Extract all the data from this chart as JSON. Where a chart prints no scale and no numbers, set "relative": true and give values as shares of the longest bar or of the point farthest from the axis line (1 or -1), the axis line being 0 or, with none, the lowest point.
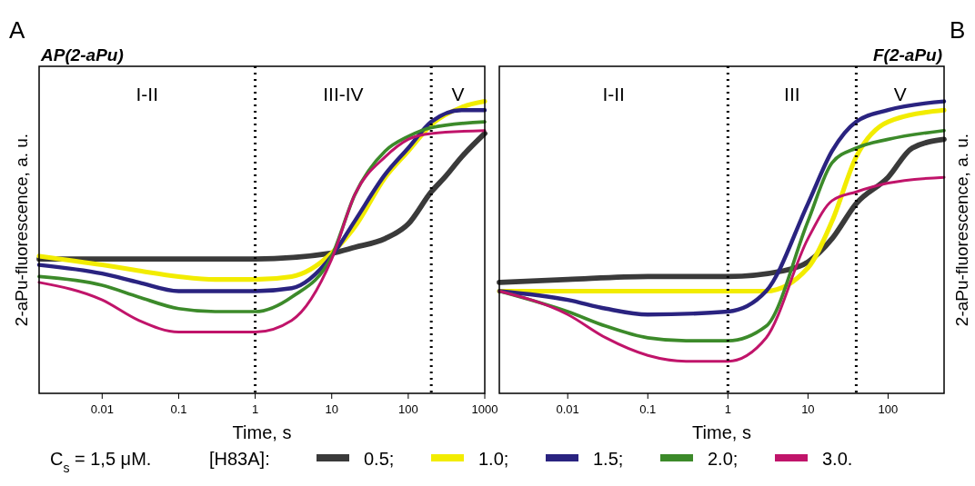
{
  "chart_data": [
    {
      "type": "line",
      "title": "AP(2-aPu)",
      "xlabel": "Time, s",
      "ylabel": "2-aPu-fluorescence, a. u.",
      "legend_title": "[H83A]:",
      "legend": "bottom",
      "relative": true,
      "log": "x",
      "grid": false,
      "marker": "none",
      "line_style": "solid",
      "xlim": [
        0.0015,
        1000
      ],
      "xticks": [
        0.01,
        0.1,
        1,
        10,
        100,
        1000
      ],
      "annotations": [
        "A",
        "C$_{s}$ = 1,5 μM.",
        "I-II",
        "III-IV",
        "V"
      ],
      "ref_lines": [
        {
          "axis": "x",
          "value": 1,
          "line_style": "dotted",
          "color": "#000000"
        },
        {
          "axis": "x",
          "value": 200,
          "line_style": "dotted",
          "color": "#000000"
        }
      ],
      "series": [
        {
          "name": "0.5;",
          "color": "#3a3a3a",
          "x": [
            0.0015,
            1,
            10,
            20,
            50,
            100,
            200,
            300,
            500,
            1000
          ],
          "values": [
            0.46,
            0.46,
            0.48,
            0.5,
            0.53,
            0.58,
            0.69,
            0.74,
            0.81,
            0.89
          ]
        },
        {
          "name": "1.0;",
          "color": "#f2ec00",
          "x": [
            0.0015,
            0.01,
            0.03,
            0.1,
            0.3,
            1,
            3,
            10,
            20,
            50,
            100,
            200,
            500,
            1000
          ],
          "values": [
            0.47,
            0.44,
            0.42,
            0.4,
            0.39,
            0.39,
            0.4,
            0.48,
            0.57,
            0.74,
            0.83,
            0.92,
            0.98,
            1
          ]
        },
        {
          "name": "1.5;",
          "color": "#2a2380",
          "x": [
            0.0015,
            0.01,
            0.03,
            0.1,
            1,
            3,
            10,
            20,
            50,
            100,
            200,
            500,
            1000
          ],
          "values": [
            0.44,
            0.41,
            0.38,
            0.35,
            0.35,
            0.36,
            0.47,
            0.59,
            0.75,
            0.84,
            0.93,
            0.97,
            0.97
          ]
        },
        {
          "name": "2.0;",
          "color": "#3c8a2a",
          "x": [
            0.0015,
            0.01,
            0.03,
            0.1,
            0.3,
            1,
            3,
            10,
            20,
            50,
            100,
            200,
            1000
          ],
          "values": [
            0.4,
            0.37,
            0.33,
            0.29,
            0.28,
            0.28,
            0.33,
            0.47,
            0.68,
            0.83,
            0.88,
            0.91,
            0.93
          ]
        },
        {
          "name": "3.0.",
          "color": "#c0146a",
          "x": [
            0.0015,
            0.01,
            0.03,
            0.1,
            0.3,
            1,
            3,
            10,
            20,
            50,
            100,
            200,
            1000
          ],
          "values": [
            0.38,
            0.32,
            0.25,
            0.21,
            0.21,
            0.21,
            0.25,
            0.46,
            0.68,
            0.81,
            0.87,
            0.89,
            0.9
          ]
        }
      ]
    },
    {
      "type": "line",
      "title": "F(2-aPu)",
      "xlabel": "Time, s",
      "ylabel": "2-aPu-fluorescence, a. u.",
      "relative": true,
      "log": "x",
      "grid": false,
      "marker": "none",
      "line_style": "solid",
      "xlim": [
        0.0014,
        500
      ],
      "xticks": [
        0.01,
        0.1,
        1,
        10,
        100
      ],
      "annotations": [
        "B",
        "I-II",
        "III",
        "V"
      ],
      "ref_lines": [
        {
          "axis": "x",
          "value": 1,
          "line_style": "dotted",
          "color": "#000000"
        },
        {
          "axis": "x",
          "value": 40,
          "line_style": "dotted",
          "color": "#000000"
        }
      ],
      "series": [
        {
          "color": "#3a3a3a",
          "x": [
            0.0014,
            0.01,
            0.1,
            1,
            5,
            10,
            20,
            40,
            100,
            200,
            500
          ],
          "values": [
            0.38,
            0.39,
            0.4,
            0.4,
            0.42,
            0.45,
            0.53,
            0.65,
            0.74,
            0.84,
            0.87
          ]
        },
        {
          "color": "#f2ec00",
          "x": [
            0.0014,
            0.1,
            1,
            3,
            10,
            20,
            40,
            100,
            500
          ],
          "values": [
            0.35,
            0.35,
            0.35,
            0.35,
            0.43,
            0.59,
            0.81,
            0.93,
            0.97
          ]
        },
        {
          "color": "#2a2380",
          "x": [
            0.0014,
            0.01,
            0.03,
            0.1,
            1,
            3,
            10,
            20,
            40,
            100,
            500
          ],
          "values": [
            0.35,
            0.32,
            0.29,
            0.27,
            0.28,
            0.35,
            0.65,
            0.83,
            0.93,
            0.97,
            1
          ]
        },
        {
          "color": "#3c8a2a",
          "x": [
            0.0014,
            0.01,
            0.03,
            0.1,
            0.3,
            1,
            3,
            10,
            20,
            40,
            100,
            500
          ],
          "values": [
            0.35,
            0.28,
            0.23,
            0.19,
            0.18,
            0.18,
            0.23,
            0.59,
            0.79,
            0.84,
            0.87,
            0.9
          ]
        },
        {
          "color": "#c0146a",
          "x": [
            0.0014,
            0.01,
            0.03,
            0.1,
            0.3,
            1,
            3,
            10,
            20,
            40,
            100,
            500
          ],
          "values": [
            0.35,
            0.27,
            0.19,
            0.13,
            0.11,
            0.11,
            0.19,
            0.53,
            0.66,
            0.69,
            0.72,
            0.74
          ]
        }
      ]
    }
  ]
}
